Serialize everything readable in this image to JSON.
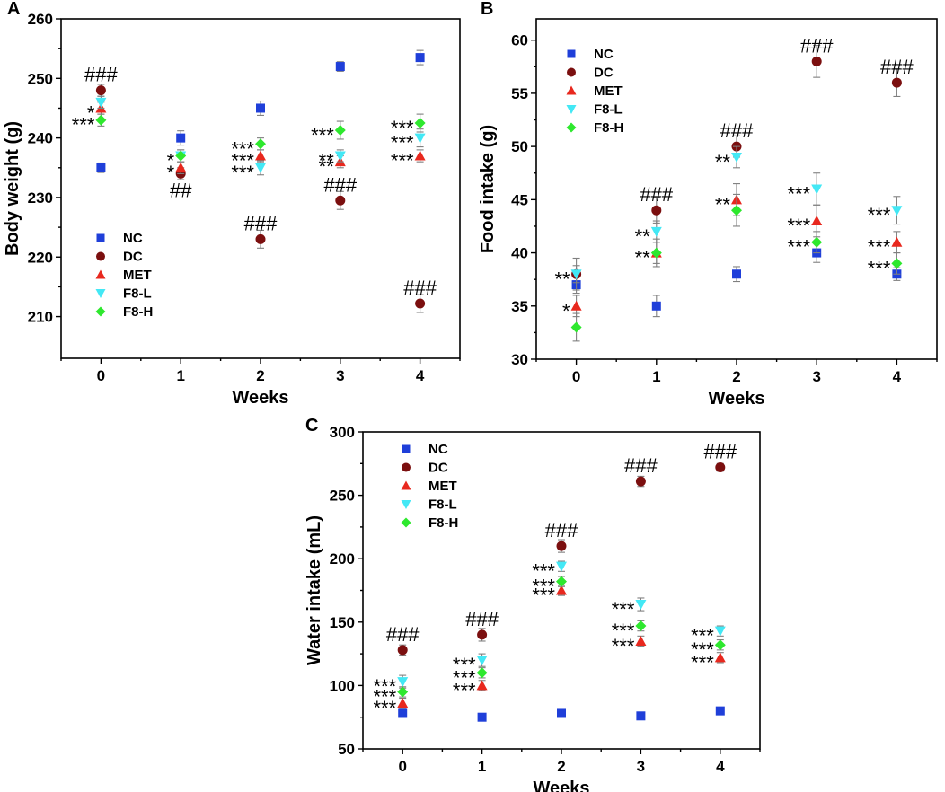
{
  "chart_data": [
    {
      "id": "A",
      "panel_label": "A",
      "type": "scatter",
      "title": "",
      "xlabel": "Weeks",
      "ylabel": "Body weight (g)",
      "x": [
        0,
        1,
        2,
        3,
        4
      ],
      "xticks": [
        "0",
        "1",
        "2",
        "3",
        "4"
      ],
      "xlim": [
        -0.5,
        4.5
      ],
      "ylim": [
        203,
        260
      ],
      "yticks": [
        210,
        220,
        230,
        240,
        250,
        260
      ],
      "legend_position": "bottom-left",
      "series": [
        {
          "name": "NC",
          "color": "#1f3fd9",
          "marker": "square",
          "values": [
            235,
            240,
            245,
            252,
            253.5
          ],
          "errors": [
            0.8,
            1.2,
            1.2,
            0.8,
            1.2
          ]
        },
        {
          "name": "DC",
          "color": "#7b0f0f",
          "marker": "circle",
          "values": [
            248,
            234,
            223,
            229.5,
            212.2
          ],
          "errors": [
            1,
            1,
            1.5,
            1.5,
            1.5
          ]
        },
        {
          "name": "MET",
          "color": "#e8281e",
          "marker": "triangle-up",
          "values": [
            245,
            235,
            237,
            236,
            237
          ],
          "errors": [
            1,
            1,
            1,
            1,
            1
          ]
        },
        {
          "name": "F8-L",
          "color": "#43e8f5",
          "marker": "triangle-down",
          "values": [
            246,
            237,
            235,
            237,
            240
          ],
          "errors": [
            1,
            1,
            1.2,
            1,
            1.5
          ]
        },
        {
          "name": "F8-H",
          "color": "#2ee82e",
          "marker": "diamond",
          "values": [
            243,
            237,
            239,
            241.3,
            242.5
          ],
          "errors": [
            1,
            1,
            1,
            1.5,
            1.5
          ]
        }
      ],
      "annotations": [
        {
          "text": "###",
          "x": 0,
          "y": 248,
          "pos": "above"
        },
        {
          "text": "*",
          "x": 0,
          "y": 245,
          "pos": "left"
        },
        {
          "text": "***",
          "x": 0,
          "y": 243,
          "pos": "left"
        },
        {
          "text": "*",
          "x": 1,
          "y": 237,
          "pos": "left"
        },
        {
          "text": "*",
          "x": 1,
          "y": 235,
          "pos": "left"
        },
        {
          "text": "##",
          "x": 1,
          "y": 234,
          "pos": "below"
        },
        {
          "text": "***",
          "x": 2,
          "y": 239,
          "pos": "left"
        },
        {
          "text": "***",
          "x": 2,
          "y": 237,
          "pos": "left"
        },
        {
          "text": "***",
          "x": 2,
          "y": 235,
          "pos": "left"
        },
        {
          "text": "###",
          "x": 2,
          "y": 223,
          "pos": "above"
        },
        {
          "text": "***",
          "x": 3,
          "y": 241.3,
          "pos": "left"
        },
        {
          "text": "**",
          "x": 3,
          "y": 237,
          "pos": "left"
        },
        {
          "text": "**",
          "x": 3,
          "y": 236,
          "pos": "left"
        },
        {
          "text": "###",
          "x": 3,
          "y": 229.5,
          "pos": "above"
        },
        {
          "text": "***",
          "x": 4,
          "y": 242.5,
          "pos": "left"
        },
        {
          "text": "***",
          "x": 4,
          "y": 240,
          "pos": "left"
        },
        {
          "text": "***",
          "x": 4,
          "y": 237,
          "pos": "left"
        },
        {
          "text": "###",
          "x": 4,
          "y": 212.2,
          "pos": "above"
        }
      ]
    },
    {
      "id": "B",
      "panel_label": "B",
      "type": "scatter",
      "title": "",
      "xlabel": "Weeks",
      "ylabel": "Food intake (g)",
      "x": [
        0,
        1,
        2,
        3,
        4
      ],
      "xticks": [
        "0",
        "1",
        "2",
        "3",
        "4"
      ],
      "xlim": [
        -0.5,
        4.5
      ],
      "ylim": [
        30,
        62
      ],
      "yticks": [
        30,
        35,
        40,
        45,
        50,
        55,
        60
      ],
      "legend_position": "top-left",
      "series": [
        {
          "name": "NC",
          "color": "#1f3fd9",
          "marker": "square",
          "values": [
            37,
            35,
            38,
            40,
            38
          ],
          "errors": [
            0.8,
            1,
            0.7,
            0.9,
            0.6
          ]
        },
        {
          "name": "DC",
          "color": "#7b0f0f",
          "marker": "circle",
          "values": [
            38,
            44,
            50,
            58,
            56
          ],
          "errors": [
            0.8,
            1.2,
            1,
            1.5,
            1.3
          ]
        },
        {
          "name": "MET",
          "color": "#e8281e",
          "marker": "triangle-up",
          "values": [
            35,
            40,
            45,
            43,
            41
          ],
          "errors": [
            1,
            1,
            1.5,
            1.5,
            1
          ]
        },
        {
          "name": "F8-L",
          "color": "#43e8f5",
          "marker": "triangle-down",
          "values": [
            38,
            42,
            49,
            46,
            44
          ],
          "errors": [
            1.5,
            1,
            1,
            1.5,
            1.3
          ]
        },
        {
          "name": "F8-H",
          "color": "#2ee82e",
          "marker": "diamond",
          "values": [
            33,
            40,
            44,
            41,
            39
          ],
          "errors": [
            1.3,
            1.3,
            1.5,
            1,
            1
          ]
        }
      ],
      "annotations": [
        {
          "text": "**",
          "x": 0,
          "y": 38,
          "pos": "left"
        },
        {
          "text": "*",
          "x": 0,
          "y": 35,
          "pos": "left"
        },
        {
          "text": "###",
          "x": 1,
          "y": 44,
          "pos": "above"
        },
        {
          "text": "**",
          "x": 1,
          "y": 42,
          "pos": "left"
        },
        {
          "text": "**",
          "x": 1,
          "y": 40,
          "pos": "left"
        },
        {
          "text": "###",
          "x": 2,
          "y": 50,
          "pos": "above"
        },
        {
          "text": "**",
          "x": 2,
          "y": 49,
          "pos": "left"
        },
        {
          "text": "**",
          "x": 2,
          "y": 45,
          "pos": "left"
        },
        {
          "text": "###",
          "x": 3,
          "y": 58,
          "pos": "above"
        },
        {
          "text": "***",
          "x": 3,
          "y": 46,
          "pos": "left"
        },
        {
          "text": "***",
          "x": 3,
          "y": 43,
          "pos": "left"
        },
        {
          "text": "***",
          "x": 3,
          "y": 41,
          "pos": "left"
        },
        {
          "text": "###",
          "x": 4,
          "y": 56,
          "pos": "above"
        },
        {
          "text": "***",
          "x": 4,
          "y": 44,
          "pos": "left"
        },
        {
          "text": "***",
          "x": 4,
          "y": 41,
          "pos": "left"
        },
        {
          "text": "***",
          "x": 4,
          "y": 39,
          "pos": "left"
        }
      ]
    },
    {
      "id": "C",
      "panel_label": "C",
      "type": "scatter",
      "title": "",
      "xlabel": "Weeks",
      "ylabel": "Water intake (mL)",
      "x": [
        0,
        1,
        2,
        3,
        4
      ],
      "xticks": [
        "0",
        "1",
        "2",
        "3",
        "4"
      ],
      "xlim": [
        -0.5,
        4.5
      ],
      "ylim": [
        50,
        300
      ],
      "yticks": [
        50,
        100,
        150,
        200,
        250,
        300
      ],
      "legend_position": "top-left",
      "series": [
        {
          "name": "NC",
          "color": "#1f3fd9",
          "marker": "square",
          "values": [
            78,
            75,
            78,
            76,
            80
          ],
          "errors": [
            3,
            2,
            2,
            2,
            2
          ]
        },
        {
          "name": "DC",
          "color": "#7b0f0f",
          "marker": "circle",
          "values": [
            128,
            140,
            210,
            261,
            272
          ],
          "errors": [
            4,
            5,
            5,
            4,
            3
          ]
        },
        {
          "name": "MET",
          "color": "#e8281e",
          "marker": "triangle-up",
          "values": [
            86,
            100,
            175,
            135,
            122
          ],
          "errors": [
            4,
            4,
            4,
            4,
            4
          ]
        },
        {
          "name": "F8-L",
          "color": "#43e8f5",
          "marker": "triangle-down",
          "values": [
            103,
            120,
            194,
            164,
            143
          ],
          "errors": [
            5,
            5,
            4,
            5,
            4
          ]
        },
        {
          "name": "F8-H",
          "color": "#2ee82e",
          "marker": "diamond",
          "values": [
            95,
            110,
            182,
            147,
            132
          ],
          "errors": [
            4,
            4,
            4,
            4,
            4
          ]
        }
      ],
      "annotations": [
        {
          "text": "###",
          "x": 0,
          "y": 128,
          "pos": "above"
        },
        {
          "text": "***",
          "x": 0,
          "y": 103,
          "pos": "left"
        },
        {
          "text": "***",
          "x": 0,
          "y": 95,
          "pos": "left"
        },
        {
          "text": "***",
          "x": 0,
          "y": 86,
          "pos": "left"
        },
        {
          "text": "###",
          "x": 1,
          "y": 140,
          "pos": "above"
        },
        {
          "text": "***",
          "x": 1,
          "y": 120,
          "pos": "left"
        },
        {
          "text": "***",
          "x": 1,
          "y": 110,
          "pos": "left"
        },
        {
          "text": "***",
          "x": 1,
          "y": 100,
          "pos": "left"
        },
        {
          "text": "###",
          "x": 2,
          "y": 210,
          "pos": "above"
        },
        {
          "text": "***",
          "x": 2,
          "y": 194,
          "pos": "left"
        },
        {
          "text": "***",
          "x": 2,
          "y": 182,
          "pos": "left"
        },
        {
          "text": "***",
          "x": 2,
          "y": 175,
          "pos": "left"
        },
        {
          "text": "###",
          "x": 3,
          "y": 261,
          "pos": "above"
        },
        {
          "text": "***",
          "x": 3,
          "y": 164,
          "pos": "left"
        },
        {
          "text": "***",
          "x": 3,
          "y": 147,
          "pos": "left"
        },
        {
          "text": "***",
          "x": 3,
          "y": 135,
          "pos": "left"
        },
        {
          "text": "###",
          "x": 4,
          "y": 272,
          "pos": "above"
        },
        {
          "text": "***",
          "x": 4,
          "y": 143,
          "pos": "left"
        },
        {
          "text": "***",
          "x": 4,
          "y": 132,
          "pos": "left"
        },
        {
          "text": "***",
          "x": 4,
          "y": 122,
          "pos": "left"
        }
      ]
    }
  ]
}
